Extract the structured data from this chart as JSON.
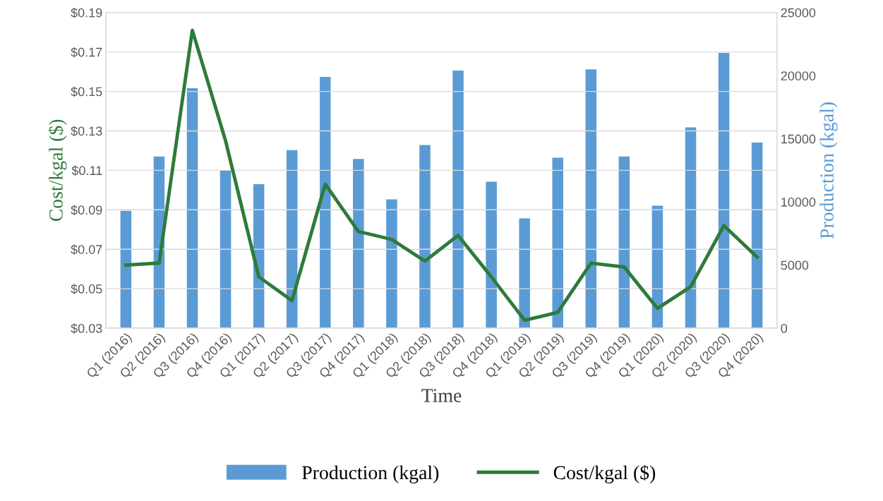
{
  "chart_data": {
    "type": "bar",
    "xlabel": "Time",
    "ylabel": "Cost/kgal ($)",
    "y2label": "Production (kgal)",
    "categories": [
      "Q1 (2016)",
      "Q2 (2016)",
      "Q3 (2016)",
      "Q4 (2016)",
      "Q1 (2017)",
      "Q2 (2017)",
      "Q3 (2017)",
      "Q4 (2017)",
      "Q1 (2018)",
      "Q2 (2018)",
      "Q3 (2018)",
      "Q4 (2018)",
      "Q1 (2019)",
      "Q2 (2019)",
      "Q3 (2019)",
      "Q4 (2019)",
      "Q1 (2020)",
      "Q2 (2020)",
      "Q3 (2020)",
      "Q4 (2020)"
    ],
    "series": [
      {
        "name": "Production (kgal)",
        "axis": "y2",
        "color": "#5b9bd5",
        "values": [
          9300,
          13600,
          19000,
          12500,
          11400,
          14100,
          19900,
          13400,
          10200,
          14500,
          20400,
          11600,
          8700,
          13500,
          20500,
          13600,
          9700,
          15900,
          21800,
          14700
        ]
      },
      {
        "name": "Cost/kgal ($)",
        "type": "line",
        "axis": "y",
        "color": "#2e7b3a",
        "values": [
          0.062,
          0.063,
          0.181,
          0.125,
          0.056,
          0.044,
          0.103,
          0.079,
          0.075,
          0.064,
          0.077,
          0.056,
          0.034,
          0.038,
          0.063,
          0.061,
          0.04,
          0.051,
          0.082,
          0.066
        ]
      }
    ],
    "ylim": [
      0.03,
      0.19
    ],
    "yticks": [
      {
        "value": 0.03,
        "label": "$0.03"
      },
      {
        "value": 0.05,
        "label": "$0.05"
      },
      {
        "value": 0.07,
        "label": "$0.07"
      },
      {
        "value": 0.09,
        "label": "$0.09"
      },
      {
        "value": 0.11,
        "label": "$0.11"
      },
      {
        "value": 0.13,
        "label": "$0.13"
      },
      {
        "value": 0.15,
        "label": "$0.15"
      },
      {
        "value": 0.17,
        "label": "$0.17"
      },
      {
        "value": 0.19,
        "label": "$0.19"
      }
    ],
    "y2lim": [
      0,
      25000
    ],
    "y2ticks": [
      0,
      5000,
      10000,
      15000,
      20000,
      25000
    ],
    "grid": "y",
    "legend": "bottom",
    "marker": "none",
    "line_style": "solid"
  }
}
